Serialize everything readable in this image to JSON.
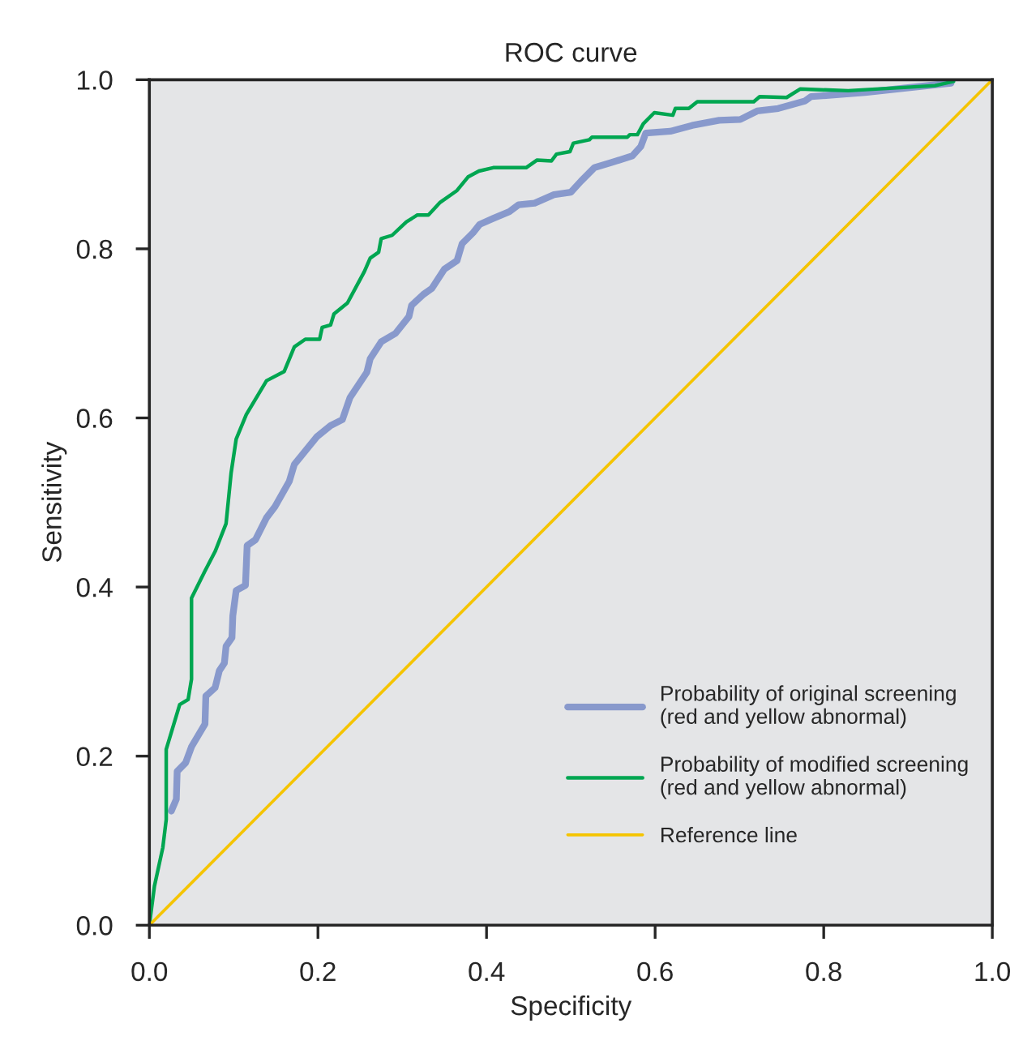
{
  "chart_data": {
    "type": "line",
    "title": "ROC curve",
    "xlabel": "Specificity",
    "ylabel": "Sensitivity",
    "xlim": [
      0,
      1
    ],
    "ylim": [
      0,
      1
    ],
    "xticks": [
      {
        "value": 0,
        "label": "0.0"
      },
      {
        "value": 0.2,
        "label": "0.2"
      },
      {
        "value": 0.4,
        "label": "0.4"
      },
      {
        "value": 0.6,
        "label": "0.6"
      },
      {
        "value": 0.8,
        "label": "0.8"
      },
      {
        "value": 1,
        "label": "1.0"
      }
    ],
    "yticks": [
      {
        "value": 0,
        "label": "0.0"
      },
      {
        "value": 0.2,
        "label": "0.2"
      },
      {
        "value": 0.4,
        "label": "0.4"
      },
      {
        "value": 0.6,
        "label": "0.6"
      },
      {
        "value": 0.8,
        "label": "0.8"
      },
      {
        "value": 1,
        "label": "1.0"
      }
    ],
    "grid": false,
    "legend": "bottom right",
    "marker": "none",
    "line_style": "solid",
    "series": [
      {
        "name": "Probability of original screening\n(red and yellow abnormal)",
        "color": "#8899cc",
        "x": [
          0.026,
          0.032,
          0.033,
          0.043,
          0.05,
          0.066,
          0.067,
          0.078,
          0.083,
          0.089,
          0.091,
          0.098,
          0.099,
          0.103,
          0.114,
          0.116,
          0.126,
          0.139,
          0.149,
          0.166,
          0.172,
          0.199,
          0.215,
          0.229,
          0.238,
          0.258,
          0.262,
          0.275,
          0.292,
          0.308,
          0.311,
          0.325,
          0.335,
          0.35,
          0.365,
          0.371,
          0.384,
          0.392,
          0.408,
          0.427,
          0.438,
          0.457,
          0.48,
          0.5,
          0.512,
          0.528,
          0.548,
          0.573,
          0.583,
          0.589,
          0.618,
          0.644,
          0.676,
          0.701,
          0.721,
          0.746,
          0.778,
          0.785,
          0.849,
          0.951
        ],
        "values": [
          0.135,
          0.149,
          0.182,
          0.192,
          0.211,
          0.238,
          0.271,
          0.281,
          0.301,
          0.31,
          0.33,
          0.34,
          0.366,
          0.396,
          0.402,
          0.449,
          0.456,
          0.482,
          0.495,
          0.525,
          0.545,
          0.578,
          0.591,
          0.598,
          0.624,
          0.654,
          0.67,
          0.69,
          0.7,
          0.72,
          0.733,
          0.746,
          0.753,
          0.776,
          0.786,
          0.806,
          0.819,
          0.829,
          0.836,
          0.844,
          0.852,
          0.854,
          0.864,
          0.867,
          0.88,
          0.896,
          0.902,
          0.91,
          0.921,
          0.937,
          0.939,
          0.946,
          0.952,
          0.953,
          0.963,
          0.966,
          0.975,
          0.98,
          0.985,
          0.996
        ]
      },
      {
        "name": "Probability of modified screening\n(red and yellow abnormal)",
        "color": "#00a651",
        "x": [
          0,
          0.006,
          0.016,
          0.02,
          0.02,
          0.036,
          0.046,
          0.05,
          0.05,
          0.066,
          0.078,
          0.091,
          0.093,
          0.097,
          0.103,
          0.115,
          0.139,
          0.16,
          0.172,
          0.185,
          0.202,
          0.205,
          0.215,
          0.219,
          0.235,
          0.248,
          0.255,
          0.262,
          0.272,
          0.275,
          0.288,
          0.305,
          0.318,
          0.331,
          0.345,
          0.365,
          0.378,
          0.391,
          0.408,
          0.447,
          0.46,
          0.477,
          0.483,
          0.499,
          0.503,
          0.522,
          0.525,
          0.567,
          0.57,
          0.579,
          0.586,
          0.599,
          0.621,
          0.624,
          0.64,
          0.65,
          0.717,
          0.724,
          0.756,
          0.772,
          0.829,
          0.932,
          0.954
        ],
        "values": [
          0,
          0.046,
          0.092,
          0.125,
          0.208,
          0.261,
          0.267,
          0.291,
          0.387,
          0.419,
          0.442,
          0.475,
          0.495,
          0.535,
          0.575,
          0.604,
          0.644,
          0.655,
          0.684,
          0.693,
          0.693,
          0.707,
          0.71,
          0.723,
          0.736,
          0.76,
          0.773,
          0.789,
          0.796,
          0.812,
          0.816,
          0.832,
          0.84,
          0.84,
          0.855,
          0.869,
          0.885,
          0.892,
          0.896,
          0.896,
          0.905,
          0.904,
          0.912,
          0.915,
          0.925,
          0.929,
          0.932,
          0.932,
          0.935,
          0.935,
          0.948,
          0.961,
          0.958,
          0.966,
          0.966,
          0.974,
          0.974,
          0.98,
          0.979,
          0.989,
          0.987,
          0.993,
          0.998
        ]
      },
      {
        "name": "Reference line",
        "color": "#f5c400",
        "x": [
          0,
          1
        ],
        "values": [
          0,
          1
        ]
      }
    ]
  }
}
